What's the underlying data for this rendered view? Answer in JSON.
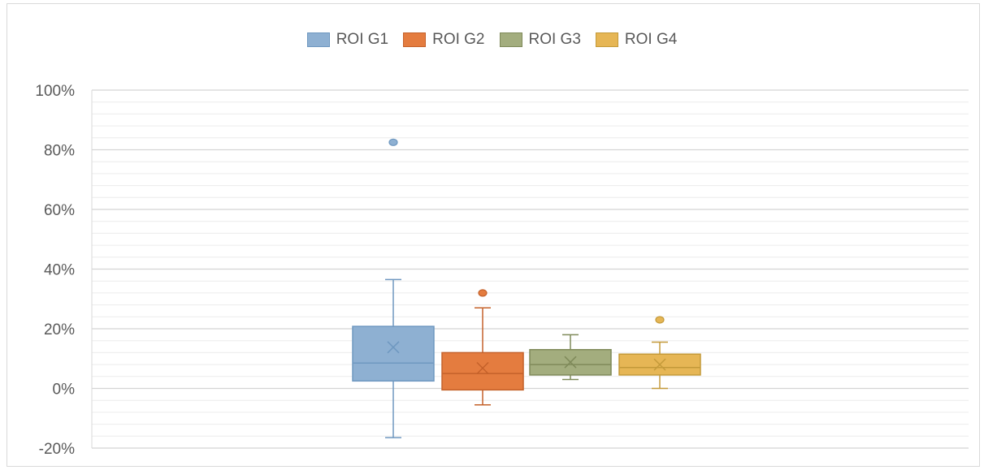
{
  "chart_data": {
    "type": "boxplot",
    "title": "",
    "xlabel": "",
    "ylabel": "",
    "ylim": [
      -20,
      100
    ],
    "ytick_step": 20,
    "minor_grid_step": 4,
    "y_tick_labels": [
      "-20%",
      "0%",
      "20%",
      "40%",
      "60%",
      "80%",
      "100%"
    ],
    "grid": true,
    "legend_position": "top-center",
    "series": [
      {
        "name": "ROI G1",
        "color": "#8eb0d2",
        "stroke": "#6f98c0",
        "whisker_low": -16.5,
        "q1": 2.5,
        "median": 8.5,
        "q3": 20.8,
        "whisker_high": 36.5,
        "mean": 13.8,
        "outliers": [
          82.5
        ]
      },
      {
        "name": "ROI G2",
        "color": "#e47c3f",
        "stroke": "#c4612a",
        "whisker_low": -5.5,
        "q1": -0.5,
        "median": 5.0,
        "q3": 12.0,
        "whisker_high": 27.0,
        "mean": 6.8,
        "outliers": [
          32.0
        ]
      },
      {
        "name": "ROI G3",
        "color": "#a3ad7e",
        "stroke": "#7f8a5a",
        "whisker_low": 3.0,
        "q1": 4.5,
        "median": 8.0,
        "q3": 13.0,
        "whisker_high": 18.0,
        "mean": 8.8,
        "outliers": []
      },
      {
        "name": "ROI G4",
        "color": "#e6b655",
        "stroke": "#c49a3a",
        "whisker_low": 0.0,
        "q1": 4.5,
        "median": 7.0,
        "q3": 11.5,
        "whisker_high": 15.5,
        "mean": 8.0,
        "outliers": [
          23.0
        ]
      }
    ]
  }
}
